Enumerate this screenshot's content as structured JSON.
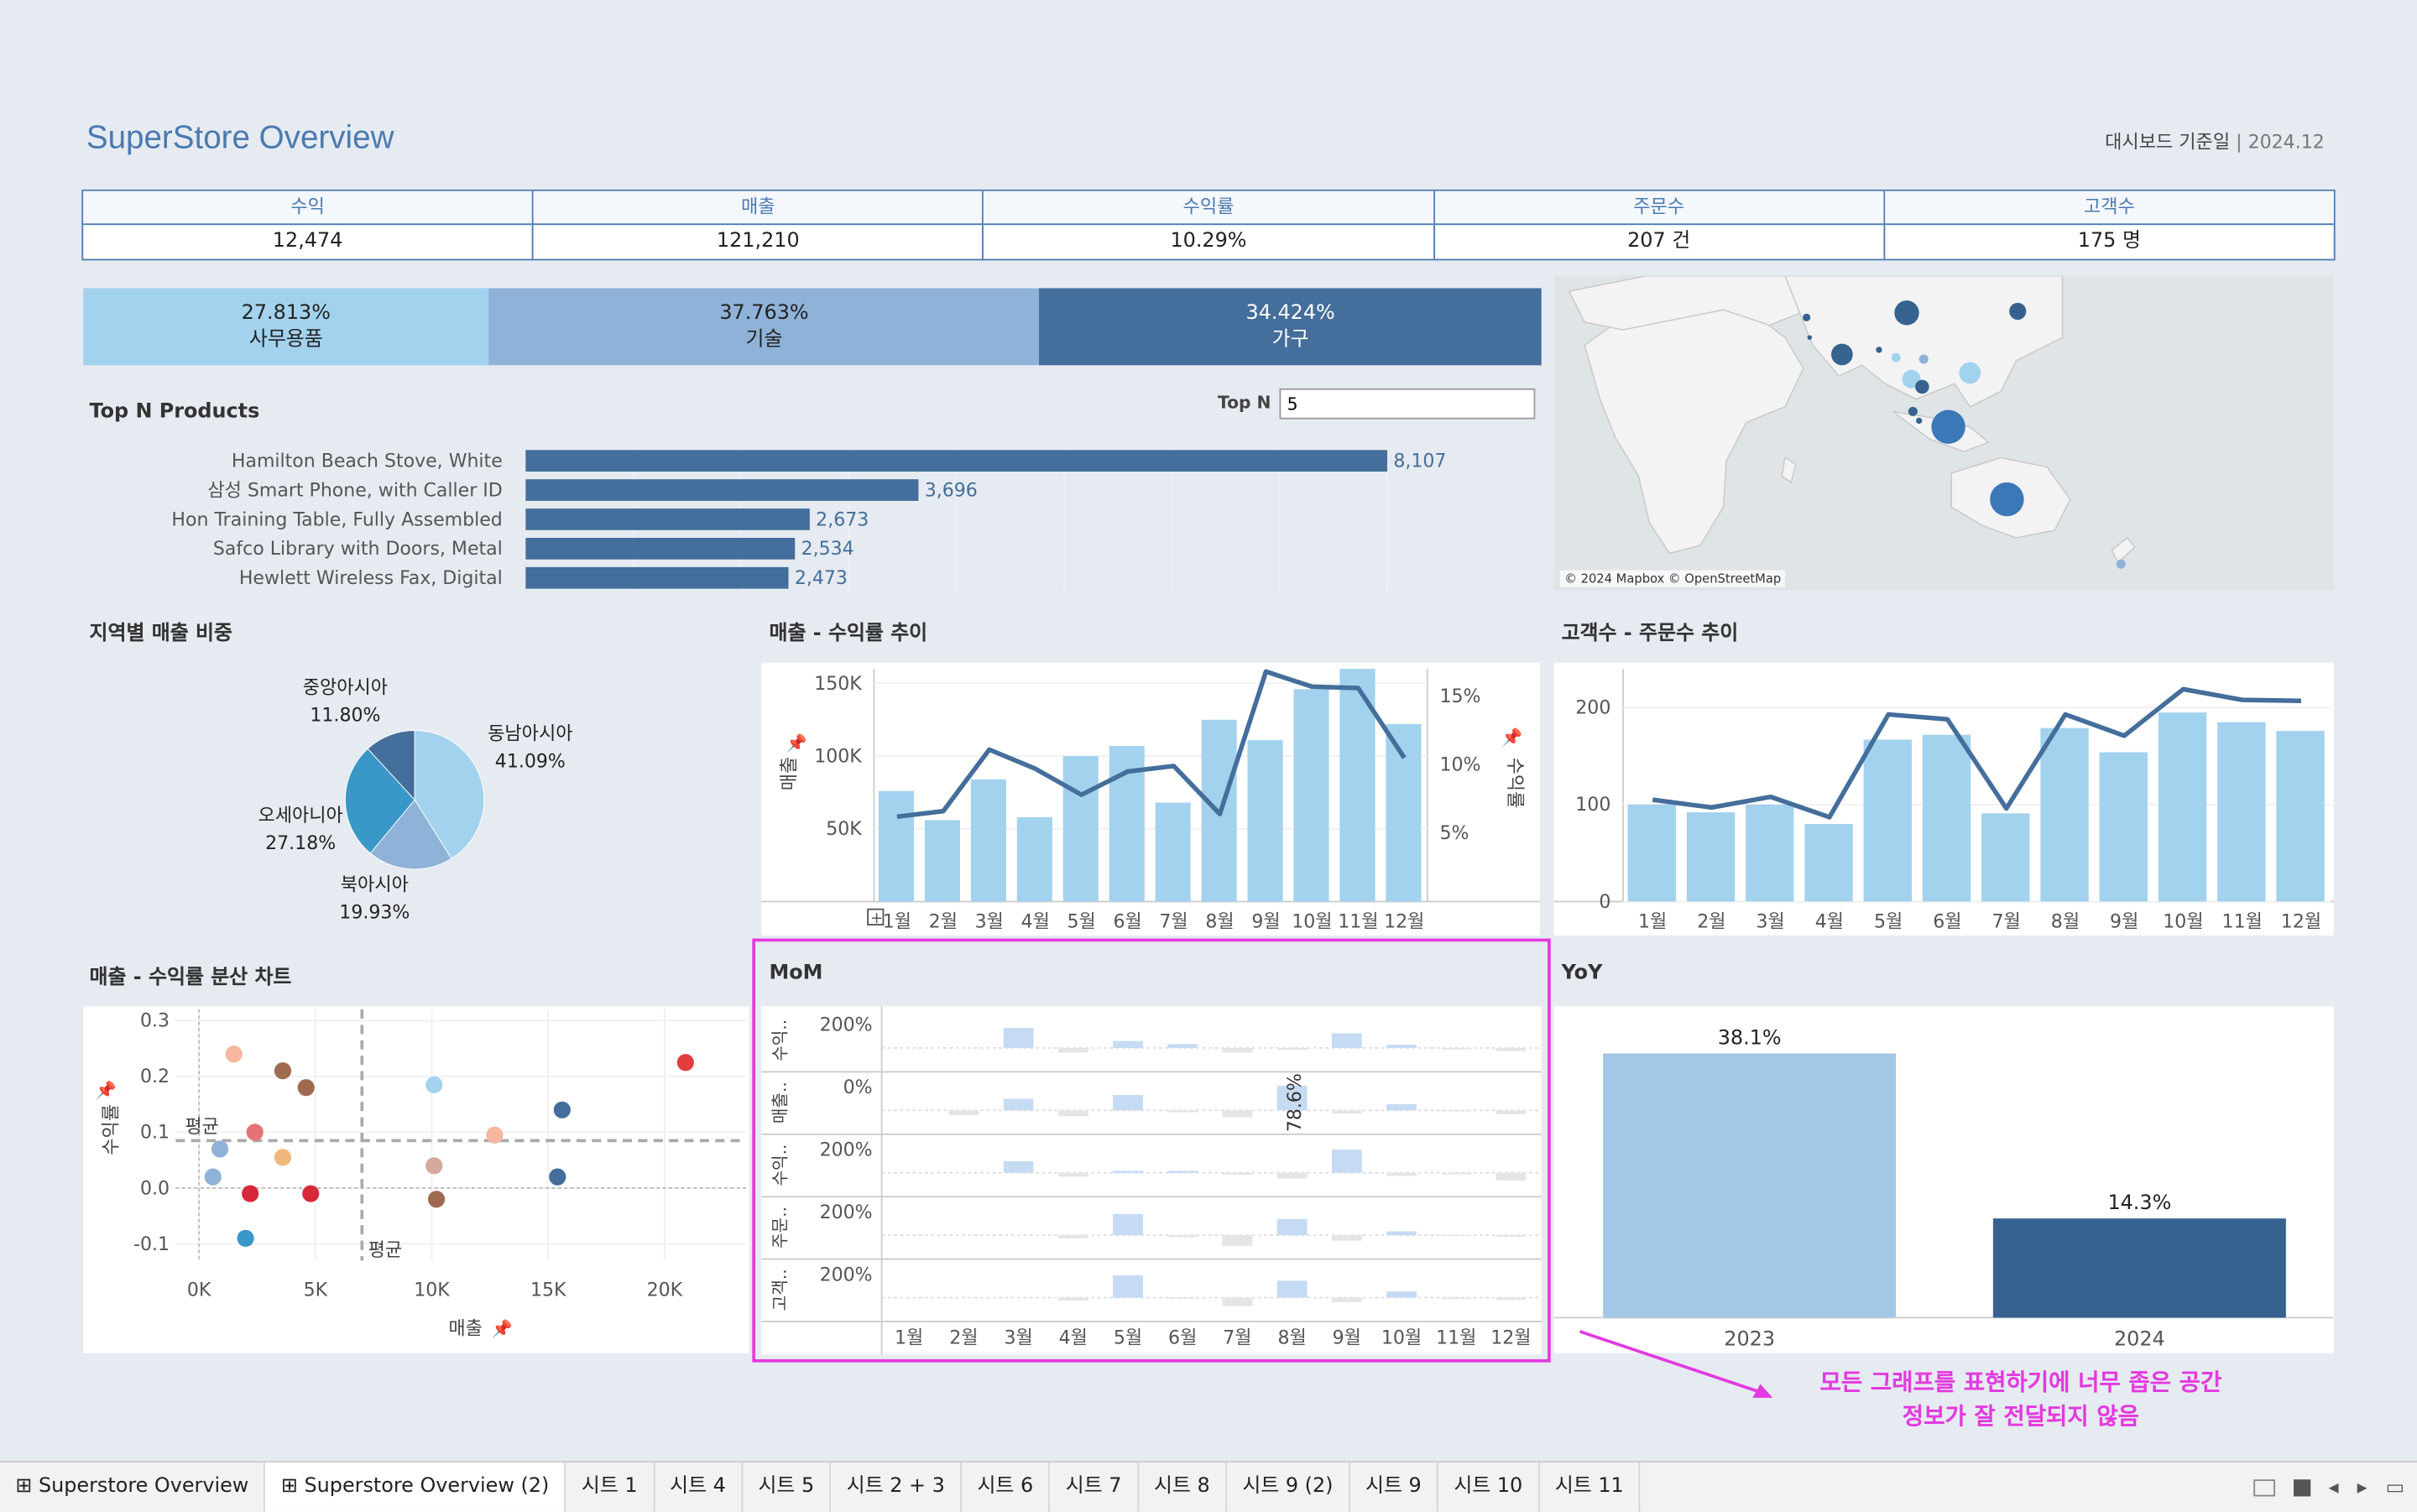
{
  "header": {
    "title": "SuperStore Overview",
    "base_date_label": "대시보드 기준일",
    "base_date_value": "2024.12"
  },
  "kpis": [
    {
      "label": "수익",
      "value": "12,474"
    },
    {
      "label": "매출",
      "value": "121,210"
    },
    {
      "label": "수익률",
      "value": "10.29%"
    },
    {
      "label": "주문수",
      "value": "207 건"
    },
    {
      "label": "고객수",
      "value": "175 명"
    }
  ],
  "category_share": [
    {
      "pct": "27.813%",
      "name": "사무용품",
      "share": 27.813,
      "color": "#a3d2ee",
      "text": "#222"
    },
    {
      "pct": "37.763%",
      "name": "기술",
      "share": 37.763,
      "color": "#8fb2d8",
      "text": "#222"
    },
    {
      "pct": "34.424%",
      "name": "가구",
      "share": 34.424,
      "color": "#446e9b",
      "text": "#fff"
    }
  ],
  "top_n": {
    "title": "Top N Products",
    "param_label": "Top N",
    "param_value": "5"
  },
  "map": {
    "attribution": "© 2024 Mapbox © OpenStreetMap"
  },
  "panels": {
    "pie_title": "지역별 매출 비중",
    "combo1_title": "매출 - 수익률 추이",
    "combo2_title": "고객수 - 주문수 추이",
    "scatter_title": "매출 - 수익률 분산 차트",
    "mom_title": "MoM",
    "yoy_title": "YoY"
  },
  "callout": {
    "line1": "모든 그래프를 표현하기에 너무 좁은 공간",
    "line2": "정보가 잘 전달되지 않음"
  },
  "tabs": [
    {
      "label": "Superstore Overview",
      "icon": "grid-icon"
    },
    {
      "label": "Superstore Overview (2)",
      "icon": "grid-icon"
    },
    {
      "label": "시트 1"
    },
    {
      "label": "시트 4"
    },
    {
      "label": "시트 5"
    },
    {
      "label": "시트 2 + 3"
    },
    {
      "label": "시트 6"
    },
    {
      "label": "시트 7"
    },
    {
      "label": "시트 8"
    },
    {
      "label": "시트 9 (2)"
    },
    {
      "label": "시트 9"
    },
    {
      "label": "시트 10"
    },
    {
      "label": "시트 11"
    }
  ],
  "chart_data": [
    {
      "id": "top_products",
      "type": "bar",
      "orientation": "horizontal",
      "categories": [
        "Hamilton Beach Stove, White",
        "삼성 Smart Phone, with Caller ID",
        "Hon Training Table, Fully Assembled",
        "Safco Library with Doors, Metal",
        "Hewlett Wireless Fax, Digital"
      ],
      "values": [
        8107,
        3696,
        2673,
        2534,
        2473
      ],
      "labels": [
        "8,107",
        "3,696",
        "2,673",
        "2,534",
        "2,473"
      ],
      "color": "#446e9b"
    },
    {
      "id": "region_pie",
      "type": "pie",
      "slices": [
        {
          "name": "동남아시아",
          "pct_label": "41.09%",
          "value": 41.09,
          "color": "#a3d2ee"
        },
        {
          "name": "북아시아",
          "pct_label": "19.93%",
          "value": 19.93,
          "color": "#8fb2d8"
        },
        {
          "name": "오세아니아",
          "pct_label": "27.18%",
          "value": 27.18,
          "color": "#3a98c8"
        },
        {
          "name": "중앙아시아",
          "pct_label": "11.80%",
          "value": 11.8,
          "color": "#446e9b"
        }
      ]
    },
    {
      "id": "sales_margin_trend",
      "type": "bar",
      "categories": [
        "1월",
        "2월",
        "3월",
        "4월",
        "5월",
        "6월",
        "7월",
        "8월",
        "9월",
        "10월",
        "11월",
        "12월"
      ],
      "bar_series": {
        "name": "매출",
        "values": [
          76000,
          56000,
          84000,
          58000,
          100000,
          107000,
          68000,
          125000,
          111000,
          146000,
          160000,
          122000
        ]
      },
      "line_series": {
        "name": "수익률",
        "values": [
          6.2,
          6.6,
          11.1,
          9.7,
          7.8,
          9.5,
          9.9,
          6.4,
          16.8,
          15.7,
          15.6,
          10.5
        ]
      },
      "ylabel": "매출",
      "y2label": "수익률",
      "yticks": [
        "50K",
        "100K",
        "150K"
      ],
      "y2ticks": [
        "5%",
        "10%",
        "15%"
      ],
      "ylim": [
        0,
        160000
      ],
      "y2lim": [
        0,
        17
      ]
    },
    {
      "id": "customer_order_trend",
      "type": "bar",
      "categories": [
        "1월",
        "2월",
        "3월",
        "4월",
        "5월",
        "6월",
        "7월",
        "8월",
        "9월",
        "10월",
        "11월",
        "12월"
      ],
      "bar_values": [
        100,
        92,
        100,
        80,
        167,
        172,
        91,
        179,
        154,
        195,
        185,
        176
      ],
      "line_values": [
        105,
        97,
        108,
        87,
        193,
        188,
        96,
        193,
        171,
        219,
        208,
        207
      ],
      "yticks": [
        "0",
        "100",
        "200"
      ],
      "ylim": [
        0,
        240
      ]
    },
    {
      "id": "sales_margin_scatter",
      "type": "scatter",
      "xlabel": "매출",
      "ylabel": "수익률",
      "xticks": [
        "0K",
        "5K",
        "10K",
        "15K",
        "20K"
      ],
      "yticks": [
        "0.3",
        "0.2",
        "0.1",
        "0.0",
        "-0.1"
      ],
      "xlim": [
        -1000,
        23500
      ],
      "ylim": [
        -0.13,
        0.32
      ],
      "avg_label": "평균",
      "avg_x": 7000,
      "avg_y": 0.085,
      "points": [
        {
          "x": 1500,
          "y": 0.24,
          "color": "#f5b7a0"
        },
        {
          "x": 3600,
          "y": 0.21,
          "color": "#a06a50"
        },
        {
          "x": 4600,
          "y": 0.18,
          "color": "#a06a50"
        },
        {
          "x": 2400,
          "y": 0.1,
          "color": "#e57373"
        },
        {
          "x": 900,
          "y": 0.07,
          "color": "#8fb2d8"
        },
        {
          "x": 3600,
          "y": 0.055,
          "color": "#f0b87a"
        },
        {
          "x": 600,
          "y": 0.02,
          "color": "#8fb2d8"
        },
        {
          "x": 2200,
          "y": -0.01,
          "color": "#d62839"
        },
        {
          "x": 4800,
          "y": -0.01,
          "color": "#d62839"
        },
        {
          "x": 2000,
          "y": -0.09,
          "color": "#3a98c8"
        },
        {
          "x": 10100,
          "y": 0.185,
          "color": "#a3d2ee"
        },
        {
          "x": 10100,
          "y": 0.04,
          "color": "#d4a89a"
        },
        {
          "x": 10200,
          "y": -0.02,
          "color": "#a06a50"
        },
        {
          "x": 12700,
          "y": 0.095,
          "color": "#f5b7a0"
        },
        {
          "x": 15600,
          "y": 0.14,
          "color": "#446e9b"
        },
        {
          "x": 15400,
          "y": 0.02,
          "color": "#446e9b"
        },
        {
          "x": 20900,
          "y": 0.225,
          "color": "#e23c3c"
        }
      ]
    },
    {
      "id": "mom",
      "type": "bar",
      "categories": [
        "1월",
        "2월",
        "3월",
        "4월",
        "5월",
        "6월",
        "7월",
        "8월",
        "9월",
        "10월",
        "11월",
        "12월"
      ],
      "rows": [
        {
          "label": "수익..",
          "tick": "200%",
          "values": [
            0,
            0,
            52,
            -12,
            18,
            10,
            -12,
            -5,
            38,
            8,
            -4,
            -8
          ]
        },
        {
          "label": "매출..",
          "tick": "0%",
          "values": [
            0,
            -12,
            30,
            -15,
            40,
            -5,
            -18,
            78.6,
            -8,
            16,
            -3,
            -10
          ],
          "annotation": "78.6%"
        },
        {
          "label": "수익..",
          "tick": "200%",
          "values": [
            0,
            0,
            30,
            -10,
            5,
            5,
            -5,
            -15,
            60,
            -8,
            -4,
            -20
          ]
        },
        {
          "label": "주문..",
          "tick": "200%",
          "values": [
            0,
            0,
            0,
            -8,
            55,
            -5,
            -28,
            42,
            -14,
            10,
            -2,
            -4
          ]
        },
        {
          "label": "고객..",
          "tick": "200%",
          "values": [
            0,
            0,
            0,
            -8,
            58,
            -3,
            -22,
            44,
            -12,
            16,
            -4,
            -6
          ]
        }
      ]
    },
    {
      "id": "yoy",
      "type": "bar",
      "categories": [
        "2023",
        "2024"
      ],
      "values": [
        38.1,
        14.3
      ],
      "labels": [
        "38.1%",
        "14.3%"
      ],
      "colors": [
        "#a3c8e6",
        "#36628f"
      ]
    }
  ]
}
